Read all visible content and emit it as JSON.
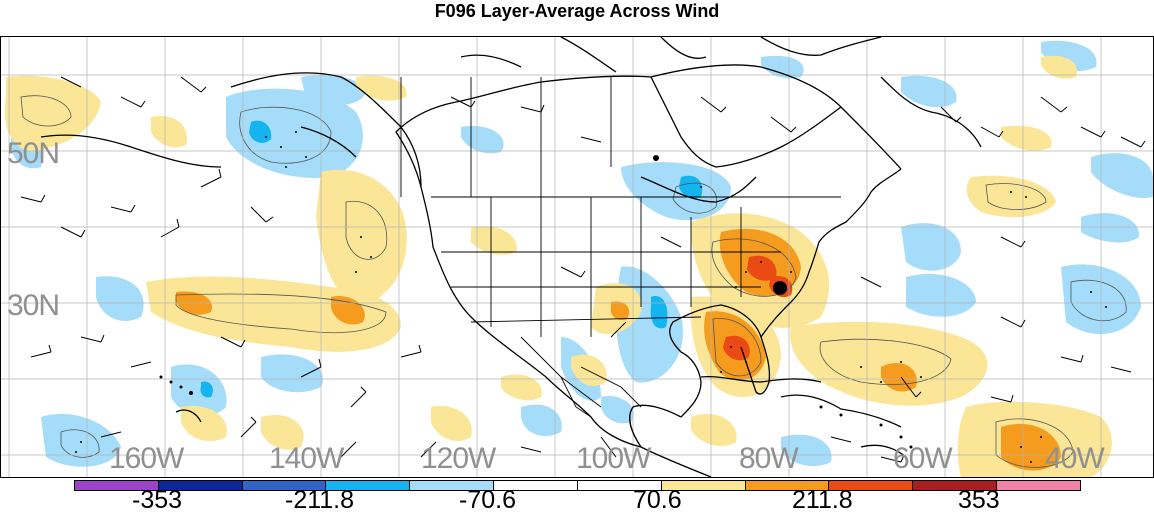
{
  "title": "F096 Layer-Average Across Wind",
  "map": {
    "lat_labels": [
      "50N",
      "30N"
    ],
    "lon_labels": [
      "160W",
      "140W",
      "120W",
      "100W",
      "80W",
      "60W",
      "40W"
    ],
    "layers": [
      "filled-contours",
      "contour-lines",
      "stippling",
      "wind-barbs",
      "coastlines",
      "political-boundaries",
      "storm-center-marker"
    ]
  },
  "colorbar": {
    "colors": [
      "#9b44c8",
      "#0a2896",
      "#3264c8",
      "#14b4f0",
      "#a5dcfa",
      "#ffffff",
      "#ffffff",
      "#fae696",
      "#f59b1e",
      "#ea4b14",
      "#aa1e1e",
      "#f082aa"
    ],
    "labels": [
      "-353",
      "-211.8",
      "-70.6",
      "70.6",
      "211.8",
      "353"
    ]
  }
}
